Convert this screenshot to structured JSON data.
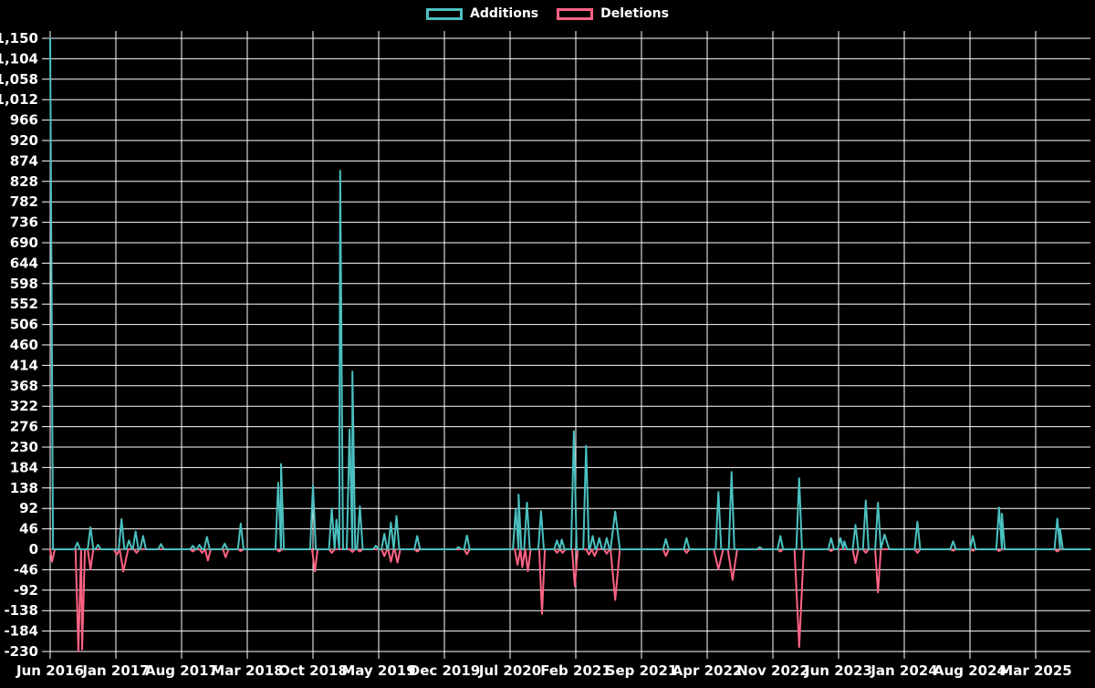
{
  "chart_data": {
    "type": "line",
    "title": "",
    "background_color": "#000000",
    "grid_color": "#ffffff",
    "text_color": "#ffffff",
    "grid": true,
    "legend": {
      "position": "top",
      "entries": [
        {
          "label": "Additions",
          "color": "#4BC0C0"
        },
        {
          "label": "Deletions",
          "color": "#FF6384"
        }
      ]
    },
    "x_axis": {
      "tick_labels": [
        "Jun 2016",
        "Jan 2017",
        "Aug 2017",
        "Mar 2018",
        "Oct 2018",
        "May 2019",
        "Dec 2019",
        "Jul 2020",
        "Feb 2021",
        "Sep 2021",
        "Apr 2022",
        "Nov 2022",
        "Jun 2023",
        "Jan 2024",
        "Aug 2024",
        "Mar 2025"
      ],
      "months_per_tick": 7,
      "t_unit": "months since Jun 2016",
      "t_max": 110.8
    },
    "y_axis": {
      "min": -230,
      "max": 1150,
      "step": 46
    },
    "series": [
      {
        "name": "Additions",
        "color": "#4BC0C0",
        "spikes": [
          [
            0,
            1150
          ],
          [
            2.9,
            15
          ],
          [
            4.3,
            50
          ],
          [
            5.1,
            10
          ],
          [
            7.6,
            68
          ],
          [
            8.4,
            20
          ],
          [
            9.1,
            40
          ],
          [
            9.9,
            30
          ],
          [
            11.8,
            12
          ],
          [
            15.2,
            8
          ],
          [
            15.9,
            10
          ],
          [
            16.7,
            28
          ],
          [
            18.6,
            13
          ],
          [
            20.3,
            58
          ],
          [
            24.3,
            150
          ],
          [
            24.6,
            192
          ],
          [
            28.0,
            144
          ],
          [
            30.0,
            92
          ],
          [
            30.5,
            67
          ],
          [
            30.9,
            852
          ],
          [
            31.9,
            270
          ],
          [
            32.2,
            400
          ],
          [
            33.0,
            97
          ],
          [
            34.7,
            8
          ],
          [
            35.6,
            35
          ],
          [
            36.3,
            60
          ],
          [
            36.9,
            75
          ],
          [
            39.1,
            30
          ],
          [
            43.5,
            5
          ],
          [
            44.4,
            31
          ],
          [
            49.6,
            90
          ],
          [
            49.9,
            123
          ],
          [
            50.8,
            105
          ],
          [
            52.3,
            86
          ],
          [
            54.0,
            20
          ],
          [
            54.5,
            22
          ],
          [
            55.8,
            266
          ],
          [
            57.1,
            233
          ],
          [
            57.8,
            30
          ],
          [
            58.5,
            25
          ],
          [
            59.3,
            25
          ],
          [
            60.2,
            85,
            0.5
          ],
          [
            65.6,
            23
          ],
          [
            67.8,
            25
          ],
          [
            71.2,
            129
          ],
          [
            72.6,
            174
          ],
          [
            75.6,
            5
          ],
          [
            77.8,
            30
          ],
          [
            79.8,
            160
          ],
          [
            83.2,
            25
          ],
          [
            84.2,
            25
          ],
          [
            84.6,
            18
          ],
          [
            85.8,
            55
          ],
          [
            86.9,
            110
          ],
          [
            88.2,
            105
          ],
          [
            88.9,
            33,
            0.5
          ],
          [
            92.4,
            62
          ],
          [
            96.2,
            18
          ],
          [
            98.3,
            30
          ],
          [
            101.1,
            94
          ],
          [
            101.4,
            80
          ],
          [
            107.3,
            69
          ],
          [
            107.6,
            45
          ]
        ]
      },
      {
        "name": "Deletions",
        "color": "#FF6384",
        "spikes": [
          [
            0.2,
            -28
          ],
          [
            3.0,
            -230
          ],
          [
            3.4,
            -225
          ],
          [
            4.3,
            -45
          ],
          [
            7.1,
            -12
          ],
          [
            7.8,
            -50,
            0.5
          ],
          [
            9.2,
            -8
          ],
          [
            15.2,
            -5
          ],
          [
            16.2,
            -8
          ],
          [
            16.8,
            -25
          ],
          [
            18.7,
            -18
          ],
          [
            20.3,
            -4
          ],
          [
            24.4,
            -5
          ],
          [
            28.2,
            -50
          ],
          [
            30.0,
            -8
          ],
          [
            32.2,
            -6
          ],
          [
            33.0,
            -5
          ],
          [
            35.6,
            -15
          ],
          [
            36.3,
            -28
          ],
          [
            37.0,
            -30
          ],
          [
            39.1,
            -5
          ],
          [
            44.4,
            -11
          ],
          [
            49.8,
            -35
          ],
          [
            50.3,
            -40
          ],
          [
            50.9,
            -49
          ],
          [
            52.4,
            -145
          ],
          [
            54.0,
            -8
          ],
          [
            54.6,
            -8
          ],
          [
            55.9,
            -83
          ],
          [
            57.4,
            -12
          ],
          [
            58.0,
            -15
          ],
          [
            59.3,
            -10
          ],
          [
            60.2,
            -114,
            0.5
          ],
          [
            65.6,
            -15
          ],
          [
            67.8,
            -8
          ],
          [
            71.2,
            -45,
            0.5
          ],
          [
            72.7,
            -69,
            0.5
          ],
          [
            77.8,
            -5
          ],
          [
            79.8,
            -220,
            0.5
          ],
          [
            83.2,
            -4
          ],
          [
            85.8,
            -31
          ],
          [
            86.9,
            -8
          ],
          [
            88.2,
            -97
          ],
          [
            92.4,
            -8
          ],
          [
            96.2,
            -3
          ],
          [
            98.3,
            -3
          ],
          [
            101.1,
            -4
          ],
          [
            107.3,
            -5
          ]
        ]
      }
    ]
  }
}
